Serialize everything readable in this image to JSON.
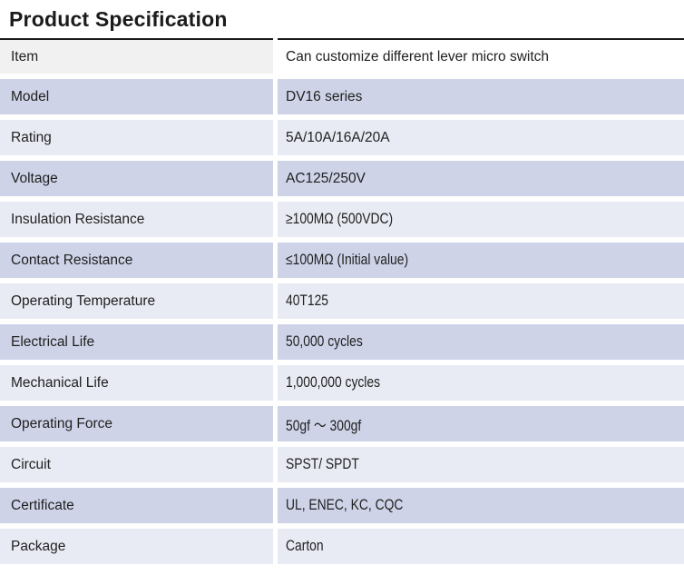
{
  "page": {
    "title": "Product Specification"
  },
  "table": {
    "rows": [
      {
        "label": "Item",
        "value": "Can customize different lever micro switch"
      },
      {
        "label": "Model",
        "value": "DV16 series"
      },
      {
        "label": "Rating",
        "value": "5A/10A/16A/20A"
      },
      {
        "label": "Voltage",
        "value": "AC125/250V"
      },
      {
        "label": "Insulation Resistance",
        "value": "≥100MΩ (500VDC)"
      },
      {
        "label": "Contact Resistance",
        "value": "≤100MΩ (Initial value)"
      },
      {
        "label": "Operating Temperature",
        "value": "40T125"
      },
      {
        "label": "Electrical Life",
        "value": "50,000 cycles"
      },
      {
        "label": "Mechanical Life",
        "value": "1,000,000 cycles"
      },
      {
        "label": "Operating Force",
        "value": "50gf ～ 300gf"
      },
      {
        "label": "Circuit",
        "value": "SPST/ SPDT"
      },
      {
        "label": "Certificate",
        "value": "UL, ENEC, KC, CQC"
      },
      {
        "label": "Package",
        "value": "Carton"
      }
    ]
  },
  "colors": {
    "row_lavender": "#ced3e8",
    "row_light": "#e9ebf4",
    "header_left_bg": "#f1f1f1",
    "header_right_bg": "#ffffff",
    "top_border": "#1a1a1a",
    "text": "#212121"
  }
}
